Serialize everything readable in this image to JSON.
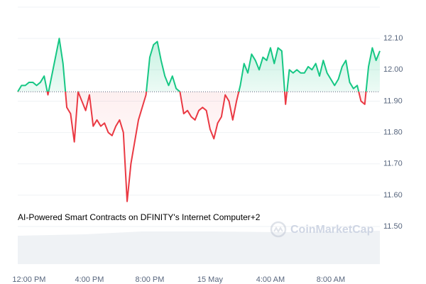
{
  "chart_data": {
    "type": "line",
    "annotation": "AI-Powered Smart Contracts on DFINITY's Internet Computer+2",
    "watermark": "CoinMarketCap",
    "categories": [
      null,
      null,
      null,
      "12:00 PM",
      null,
      null,
      null,
      null,
      null,
      null,
      null,
      null,
      null,
      null,
      null,
      null,
      null,
      null,
      null,
      "4:00 PM",
      null,
      null,
      null,
      null,
      null,
      null,
      null,
      null,
      null,
      null,
      null,
      null,
      null,
      null,
      null,
      "8:00 PM",
      null,
      null,
      null,
      null,
      null,
      null,
      null,
      null,
      null,
      null,
      null,
      null,
      null,
      null,
      null,
      "15 May",
      null,
      null,
      null,
      null,
      null,
      null,
      null,
      null,
      null,
      null,
      null,
      null,
      null,
      null,
      null,
      "4:00 AM",
      null,
      null,
      null,
      null,
      null,
      null,
      null,
      null,
      null,
      null,
      null,
      null,
      null,
      null,
      null,
      "8:00 AM",
      null,
      null,
      null,
      null,
      null,
      null,
      null,
      null,
      null,
      null,
      null,
      null,
      null
    ],
    "values": [
      11.93,
      11.95,
      11.95,
      11.96,
      11.96,
      11.95,
      11.96,
      11.98,
      11.92,
      11.98,
      12.04,
      12.1,
      12.02,
      11.88,
      11.86,
      11.77,
      11.93,
      11.9,
      11.87,
      11.92,
      11.82,
      11.84,
      11.82,
      11.83,
      11.8,
      11.79,
      11.82,
      11.84,
      11.8,
      11.58,
      11.7,
      11.77,
      11.84,
      11.88,
      11.92,
      12.04,
      12.08,
      12.09,
      12.03,
      11.98,
      11.95,
      11.98,
      11.94,
      11.93,
      11.86,
      11.87,
      11.85,
      11.84,
      11.87,
      11.88,
      11.87,
      11.81,
      11.78,
      11.83,
      11.85,
      11.92,
      11.9,
      11.84,
      11.9,
      11.95,
      12.02,
      11.99,
      12.05,
      12.03,
      12.0,
      12.04,
      12.03,
      12.07,
      12.02,
      12.07,
      12.06,
      11.89,
      12.0,
      11.99,
      12.0,
      11.99,
      11.99,
      12.01,
      12.0,
      12.02,
      11.98,
      12.03,
      11.99,
      11.97,
      11.95,
      11.97,
      12.01,
      12.03,
      11.96,
      11.94,
      11.95,
      11.9,
      11.89,
      12.01,
      12.07,
      12.03,
      12.06
    ],
    "baseline": 11.93,
    "up_color": "#16c784",
    "down_color": "#ea3943",
    "ylim": [
      11.38,
      12.2
    ],
    "yticks": [
      {
        "value": 11.5,
        "label": "11.50"
      },
      {
        "value": 11.6,
        "label": "11.60"
      },
      {
        "value": 11.7,
        "label": "11.70"
      },
      {
        "value": 11.8,
        "label": "11.80"
      },
      {
        "value": 11.9,
        "label": "11.90"
      },
      {
        "value": 12.0,
        "label": "12.00"
      },
      {
        "value": 12.1,
        "label": "12.10"
      }
    ],
    "grid": true
  }
}
